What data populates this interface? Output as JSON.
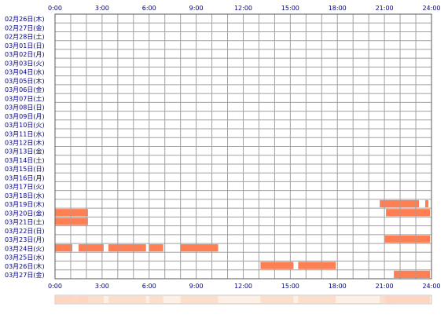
{
  "chart_data": {
    "type": "heatmap",
    "title": "",
    "xlabel": "",
    "ylabel": "",
    "x_ticks": [
      "0:00",
      "3:00",
      "6:00",
      "9:00",
      "12:00",
      "15:00",
      "18:00",
      "21:00",
      "24:00"
    ],
    "x_range_hours": [
      0,
      24
    ],
    "grid": true,
    "days": [
      "02月26日(木)",
      "02月27日(金)",
      "02月28日(土)",
      "03月01日(日)",
      "03月02日(月)",
      "03月03日(火)",
      "03月04日(水)",
      "03月05日(木)",
      "03月06日(金)",
      "03月07日(土)",
      "03月08日(日)",
      "03月09日(月)",
      "03月10日(火)",
      "03月11日(水)",
      "03月12日(木)",
      "03月13日(金)",
      "03月14日(土)",
      "03月15日(日)",
      "03月16日(月)",
      "03月17日(火)",
      "03月18日(水)",
      "03月19日(木)",
      "03月20日(金)",
      "03月21日(土)",
      "03月22日(日)",
      "03月23日(月)",
      "03月24日(火)",
      "03月25日(水)",
      "03月26日(木)",
      "03月27日(金)"
    ],
    "activity_hours": [
      [],
      [],
      [],
      [],
      [],
      [],
      [],
      [],
      [],
      [],
      [],
      [],
      [],
      [],
      [],
      [],
      [],
      [],
      [],
      [],
      [],
      [
        [
          20.7,
          23.2
        ],
        [
          23.6,
          23.8
        ]
      ],
      [
        [
          0.0,
          2.1
        ],
        [
          21.1,
          23.9
        ]
      ],
      [
        [
          0.0,
          2.1
        ]
      ],
      [],
      [
        [
          21.0,
          23.9
        ]
      ],
      [
        [
          0.0,
          1.1
        ],
        [
          1.5,
          3.1
        ],
        [
          3.4,
          5.8
        ],
        [
          6.0,
          6.9
        ],
        [
          8.0,
          10.4
        ]
      ],
      [],
      [
        [
          13.1,
          15.2
        ],
        [
          15.5,
          17.9
        ]
      ],
      [
        [
          21.6,
          23.9
        ]
      ]
    ],
    "colors": {
      "active": "#ff7f55",
      "grid": "#a0a0a0",
      "frame": "#5a5a5a",
      "axis_text": "#000080",
      "summary_bg": "#fff0e6",
      "summary_active": "#ffd4bf"
    }
  }
}
